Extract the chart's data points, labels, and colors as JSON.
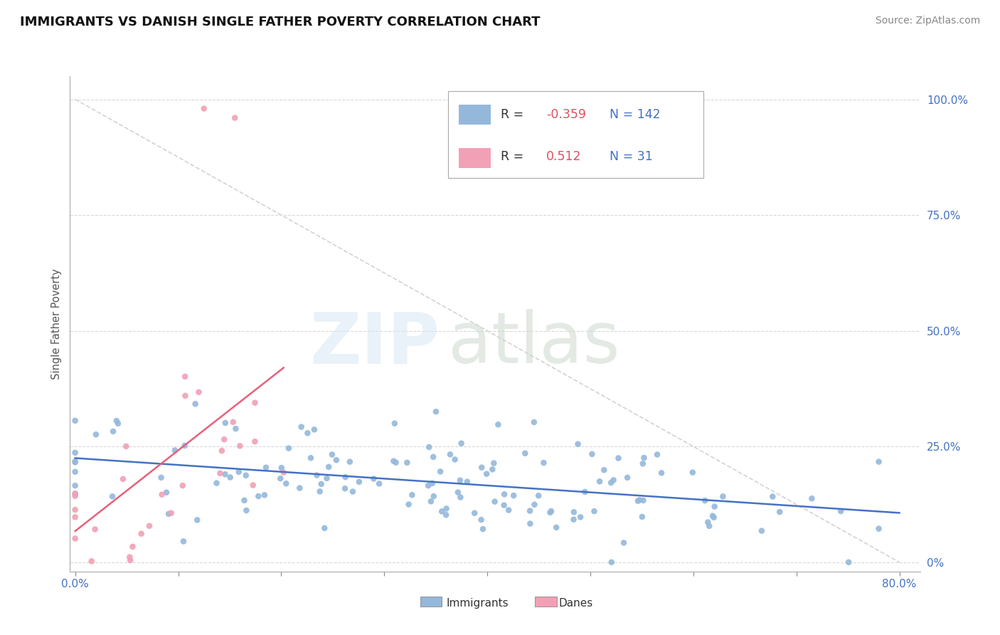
{
  "title": "IMMIGRANTS VS DANISH SINGLE FATHER POVERTY CORRELATION CHART",
  "source_text": "Source: ZipAtlas.com",
  "ylabel": "Single Father Poverty",
  "xlim": [
    0.0,
    0.8
  ],
  "ylim": [
    -0.02,
    1.05
  ],
  "y_ticks_right": [
    0.0,
    0.25,
    0.5,
    0.75,
    1.0
  ],
  "y_tick_labels_right": [
    "0%",
    "25.0%",
    "50.0%",
    "75.0%",
    "100.0%"
  ],
  "r_immigrants": -0.359,
  "n_immigrants": 142,
  "r_danes": 0.512,
  "n_danes": 31,
  "immigrants_color": "#94b8db",
  "danes_color": "#f2a0b5",
  "line_immigrants_color": "#4472c4",
  "line_danes_color": "#e8607a",
  "ref_line_color": "#c8c8c8",
  "title_fontsize": 13,
  "source_fontsize": 10,
  "seed": 12345
}
